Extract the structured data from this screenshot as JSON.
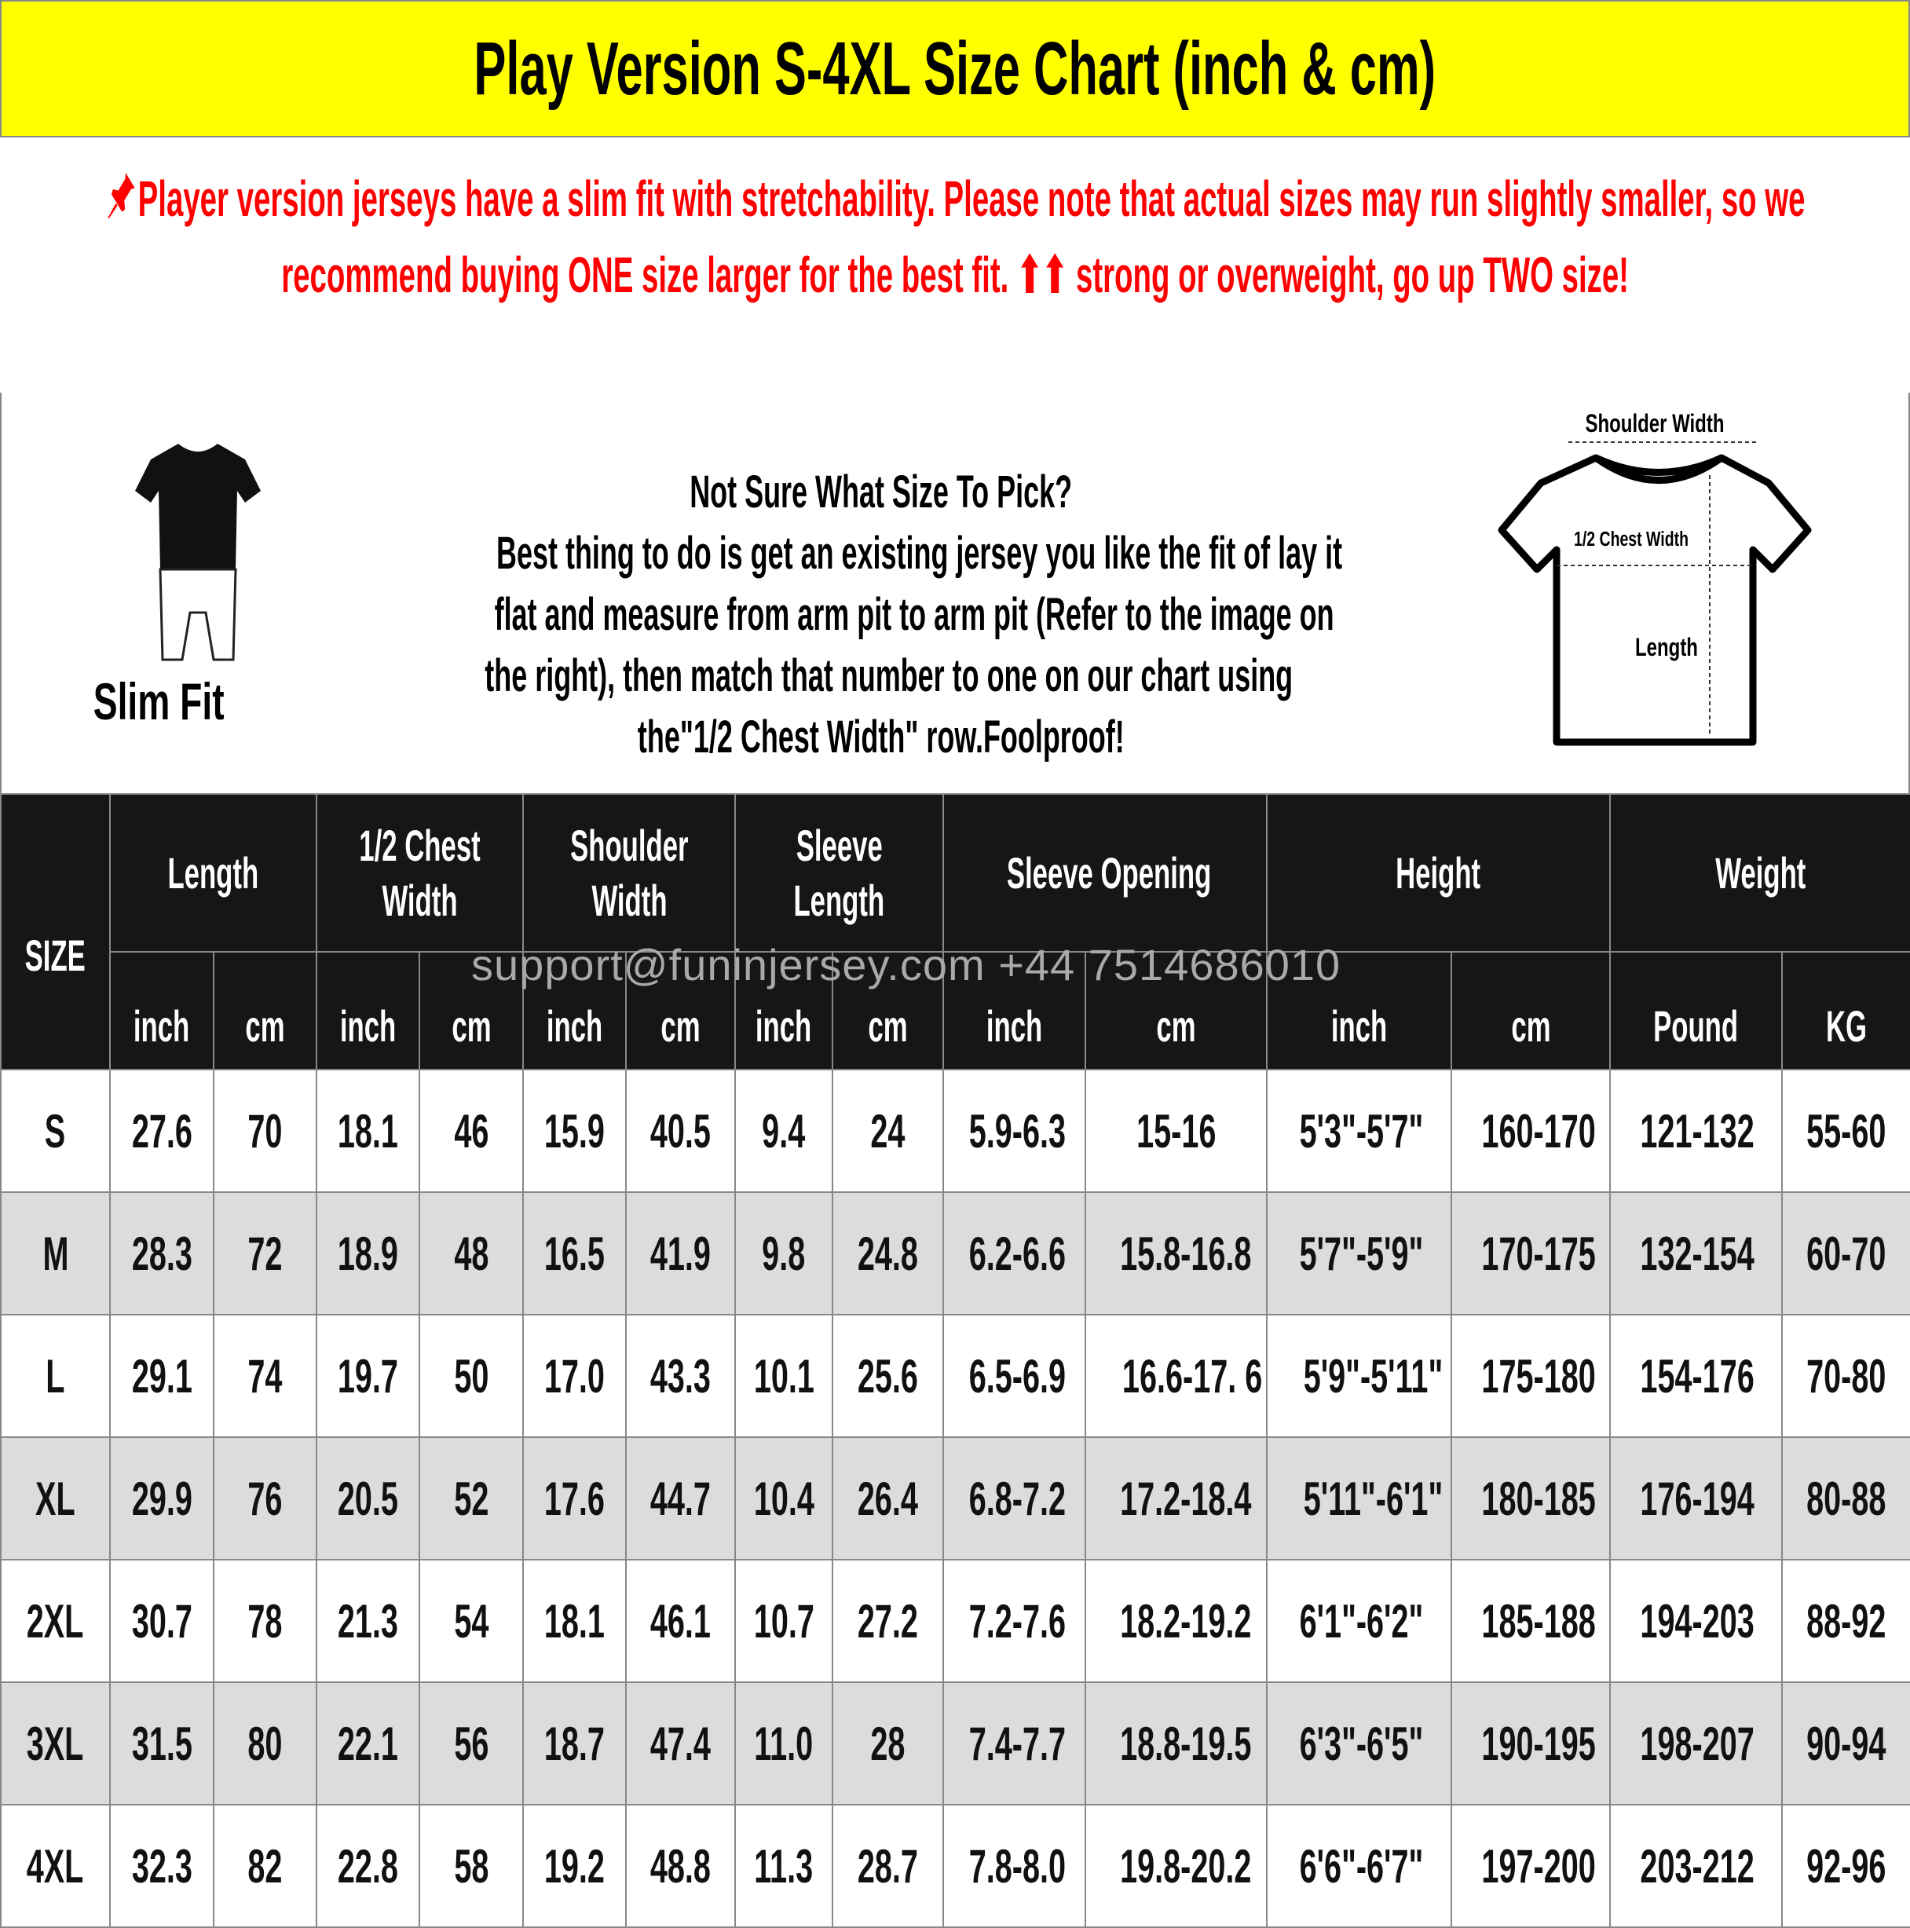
{
  "title": "Play Version S-4XL Size Chart (inch & cm)",
  "notice": {
    "icon": "pushpin-icon",
    "text": "Player version jerseys have a slim fit with stretchability. Please note that actual sizes may run slightly smaller, so we recommend buying ONE size larger for the best fit. ⬆⬆ strong or overweight, go up TWO size!",
    "color": "#ff0000"
  },
  "fit_label": "Slim Fit",
  "help": {
    "lines": [
      "Not Sure What Size To Pick?",
      "Best thing to do is get an existing jersey you like the fit of lay it",
      "flat and measure from arm pit to arm pit (Refer to the image on",
      "the right), then match that number to one on our chart using",
      "the\"1/2 Chest Width\" row.Foolproof!"
    ]
  },
  "diagram": {
    "shoulder": "Shoulder Width",
    "chest": "1/2 Chest Width",
    "length": "Length"
  },
  "table": {
    "size_header": "SIZE",
    "groups": [
      "Length",
      "1/2 Chest\nWidth",
      "Shoulder\nWidth",
      "Sleeve\nLength",
      "Sleeve Opening",
      "Height",
      "Weight"
    ],
    "group_lines": [
      [
        "Length"
      ],
      [
        "1/2 Chest",
        "Width"
      ],
      [
        "Shoulder",
        "Width"
      ],
      [
        "Sleeve",
        "Length"
      ],
      [
        "Sleeve Opening"
      ],
      [
        "Height"
      ],
      [
        "Weight"
      ]
    ],
    "units": [
      "inch",
      "cm",
      "inch",
      "cm",
      "inch",
      "cm",
      "inch",
      "cm",
      "inch",
      "cm",
      "inch",
      "cm",
      "Pound",
      "KG"
    ],
    "rows": [
      [
        "S",
        "27.6",
        "70",
        "18.1",
        "46",
        "15.9",
        "40.5",
        "9.4",
        "24",
        "5.9-6.3",
        "15-16",
        "5'3\"-5'7\"",
        "160-170",
        "121-132",
        "55-60"
      ],
      [
        "M",
        "28.3",
        "72",
        "18.9",
        "48",
        "16.5",
        "41.9",
        "9.8",
        "24.8",
        "6.2-6.6",
        "15.8-16.8",
        "5'7\"-5'9\"",
        "170-175",
        "132-154",
        "60-70"
      ],
      [
        "L",
        "29.1",
        "74",
        "19.7",
        "50",
        "17.0",
        "43.3",
        "10.1",
        "25.6",
        "6.5-6.9",
        "16.6-17. 6",
        "5'9\"-5'11\"",
        "175-180",
        "154-176",
        "70-80"
      ],
      [
        "XL",
        "29.9",
        "76",
        "20.5",
        "52",
        "17.6",
        "44.7",
        "10.4",
        "26.4",
        "6.8-7.2",
        "17.2-18.4",
        "5'11\"-6'1\"",
        "180-185",
        "176-194",
        "80-88"
      ],
      [
        "2XL",
        "30.7",
        "78",
        "21.3",
        "54",
        "18.1",
        "46.1",
        "10.7",
        "27.2",
        "7.2-7.6",
        "18.2-19.2",
        "6'1\"-6'2\"",
        "185-188",
        "194-203",
        "88-92"
      ],
      [
        "3XL",
        "31.5",
        "80",
        "22.1",
        "56",
        "18.7",
        "47.4",
        "11.0",
        "28",
        "7.4-7.7",
        "18.8-19.5",
        "6'3\"-6'5\"",
        "190-195",
        "198-207",
        "90-94"
      ],
      [
        "4XL",
        "32.3",
        "82",
        "22.8",
        "58",
        "19.2",
        "48.8",
        "11.3",
        "28.7",
        "7.8-8.0",
        "19.8-20.2",
        "6'6\"-6'7\"",
        "197-200",
        "203-212",
        "92-96"
      ]
    ]
  },
  "watermark": "support@funinjersey.com  +44 7514686010",
  "colors": {
    "title_bg": "#ffff00",
    "header_bg": "#161616",
    "alt_row": "#dcdcdc",
    "notice": "#ff0000"
  }
}
